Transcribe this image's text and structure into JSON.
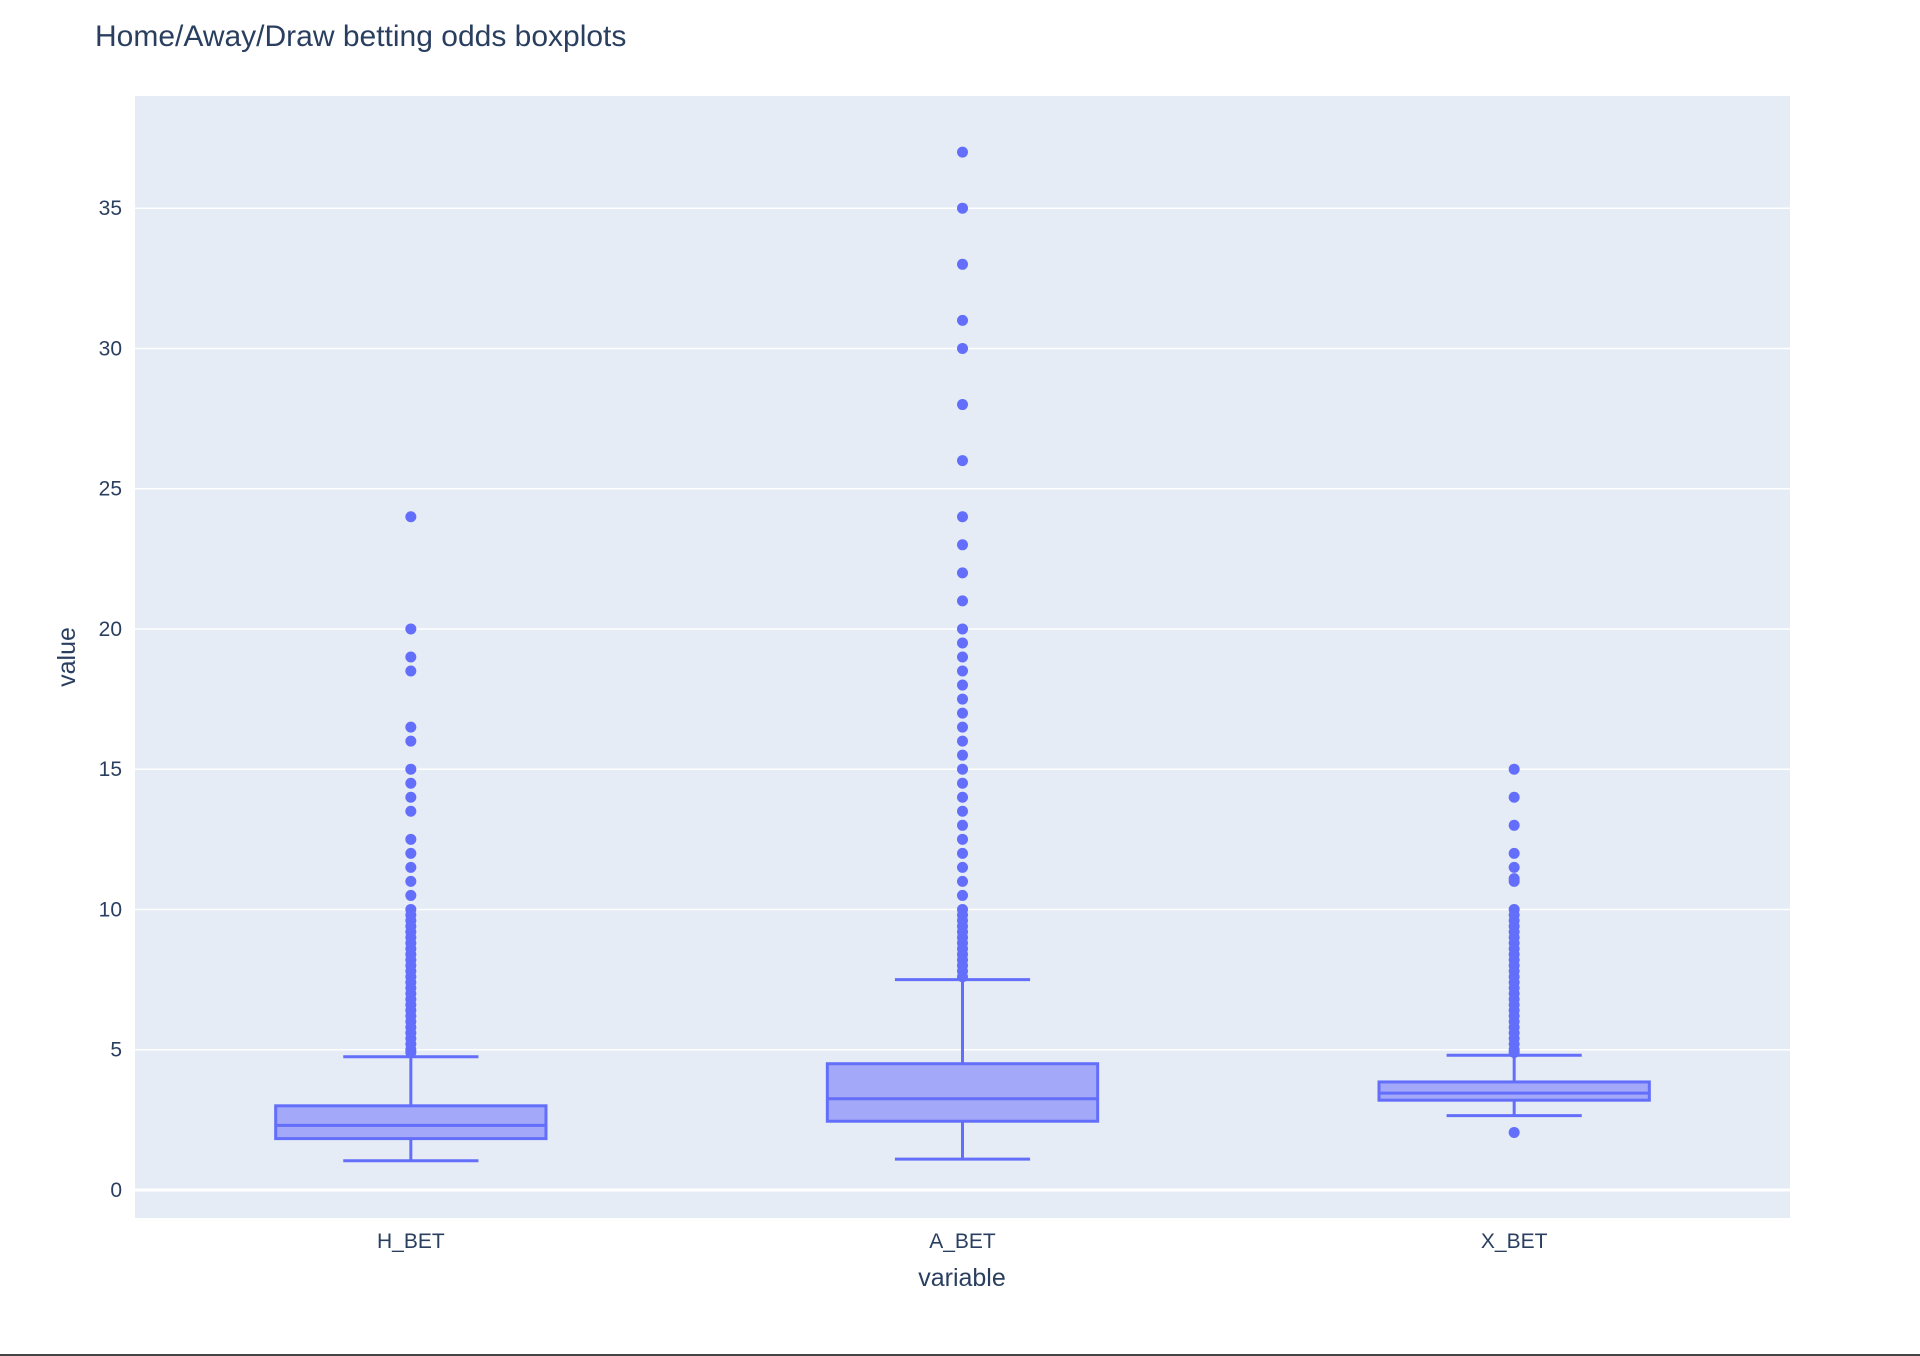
{
  "chart_data": {
    "type": "box",
    "title": "Home/Away/Draw betting odds boxplots",
    "xlabel": "variable",
    "ylabel": "value",
    "ylim": [
      -1,
      39
    ],
    "yticks": [
      0,
      5,
      10,
      15,
      20,
      25,
      30,
      35
    ],
    "grid": true,
    "colors": {
      "box_line": "#636efa",
      "box_fill": "#a3a9f8",
      "plot_bg": "#e5ecf6",
      "grid": "#ffffff",
      "text": "#2a3f5f"
    },
    "categories": [
      "H_BET",
      "A_BET",
      "X_BET"
    ],
    "series": [
      {
        "category": "H_BET",
        "lower_fence": 1.04,
        "q1": 1.83,
        "median": 2.3,
        "q3": 3.0,
        "upper_fence": 4.75,
        "outliers": [
          24,
          20,
          19,
          18.5,
          16.5,
          16,
          15,
          14.5,
          14,
          13.5,
          12.5,
          12,
          11.5,
          11,
          10.5,
          10,
          9.8,
          9.6,
          9.4,
          9.2,
          9,
          8.8,
          8.6,
          8.4,
          8.2,
          8,
          7.8,
          7.6,
          7.4,
          7.2,
          7,
          6.8,
          6.6,
          6.4,
          6.2,
          6,
          5.8,
          5.6,
          5.4,
          5.2,
          5,
          4.9
        ]
      },
      {
        "category": "A_BET",
        "lower_fence": 1.1,
        "q1": 2.45,
        "median": 3.25,
        "q3": 4.5,
        "upper_fence": 7.5,
        "outliers": [
          37,
          35,
          33,
          31,
          30,
          28,
          26,
          24,
          23,
          22,
          21,
          20,
          19.5,
          19,
          18.5,
          18,
          17.5,
          17,
          16.5,
          16,
          15.5,
          15,
          14.5,
          14,
          13.5,
          13,
          12.5,
          12,
          11.5,
          11,
          10.5,
          10,
          9.8,
          9.6,
          9.4,
          9.2,
          9,
          8.8,
          8.6,
          8.4,
          8.2,
          8,
          7.8,
          7.6
        ]
      },
      {
        "category": "X_BET",
        "lower_fence": 2.65,
        "q1": 3.2,
        "median": 3.45,
        "q3": 3.85,
        "upper_fence": 4.8,
        "outliers": [
          15,
          14,
          13,
          12,
          11.5,
          11.1,
          11,
          10,
          9.8,
          9.6,
          9.4,
          9.2,
          9,
          8.8,
          8.6,
          8.4,
          8.2,
          8,
          7.8,
          7.6,
          7.4,
          7.2,
          7,
          6.8,
          6.6,
          6.4,
          6.2,
          6,
          5.8,
          5.6,
          5.4,
          5.2,
          5,
          4.9,
          2.05
        ]
      }
    ]
  }
}
